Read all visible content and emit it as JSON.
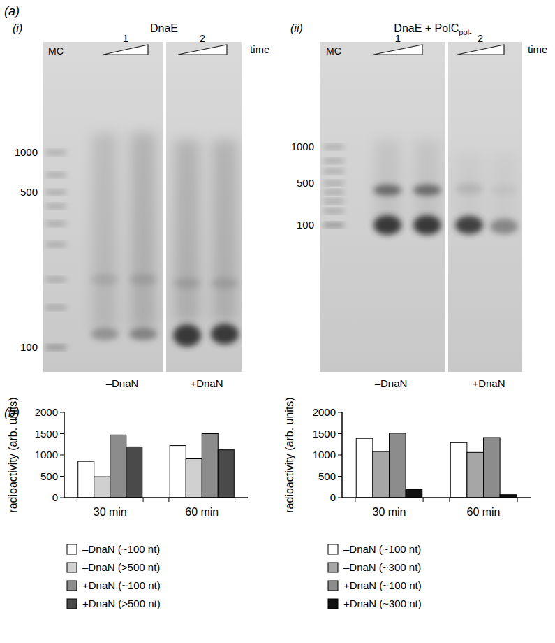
{
  "panel_labels": {
    "a": "(a)",
    "b": "(b)"
  },
  "gels": [
    {
      "label": "(i)",
      "title": "DnaE",
      "marker_lane": "MC",
      "lanes": [
        "1",
        "2"
      ],
      "time": "time",
      "size_ticks": [
        1000,
        500,
        100
      ],
      "conditions": [
        "–DnaN",
        "+DnaN"
      ]
    },
    {
      "label": "(ii)",
      "title": "DnaE + PolC",
      "title_sub": "pol-",
      "marker_lane": "MC",
      "lanes": [
        "1",
        "2"
      ],
      "time": "time",
      "size_ticks": [
        1000,
        500,
        100
      ],
      "conditions": [
        "–DnaN",
        "+DnaN"
      ]
    }
  ],
  "chart_data": [
    {
      "type": "bar",
      "y_label": "radioactivity (arb. units)",
      "categories": [
        "30 min",
        "60 min"
      ],
      "series": [
        {
          "name": "–DnaN (~100 nt)",
          "color": "#ffffff",
          "values": [
            850,
            1220
          ]
        },
        {
          "name": "–DnaN (>500 nt)",
          "color": "#d0d0d0",
          "values": [
            490,
            910
          ]
        },
        {
          "name": "+DnaN (~100 nt)",
          "color": "#8c8c8c",
          "values": [
            1470,
            1500
          ]
        },
        {
          "name": "+DnaN (>500 nt)",
          "color": "#4a4a4a",
          "values": [
            1190,
            1120
          ]
        }
      ],
      "ylim": [
        0,
        2000
      ],
      "yticks": [
        0,
        500,
        1000,
        1500,
        2000
      ],
      "grid": false,
      "legend": "bottom"
    },
    {
      "type": "bar",
      "y_label": "radioactivity (arb. units)",
      "categories": [
        "30 min",
        "60 min"
      ],
      "series": [
        {
          "name": "–DnaN (~100 nt)",
          "color": "#ffffff",
          "values": [
            1390,
            1290
          ]
        },
        {
          "name": "–DnaN (~300 nt)",
          "color": "#a6a6a6",
          "values": [
            1080,
            1060
          ]
        },
        {
          "name": "+DnaN (~100 nt)",
          "color": "#8c8c8c",
          "values": [
            1510,
            1410
          ]
        },
        {
          "name": "+DnaN (~300 nt)",
          "color": "#111111",
          "values": [
            200,
            70
          ]
        }
      ],
      "ylim": [
        0,
        2000
      ],
      "yticks": [
        0,
        500,
        1000,
        1500,
        2000
      ],
      "grid": false,
      "legend": "bottom"
    }
  ]
}
